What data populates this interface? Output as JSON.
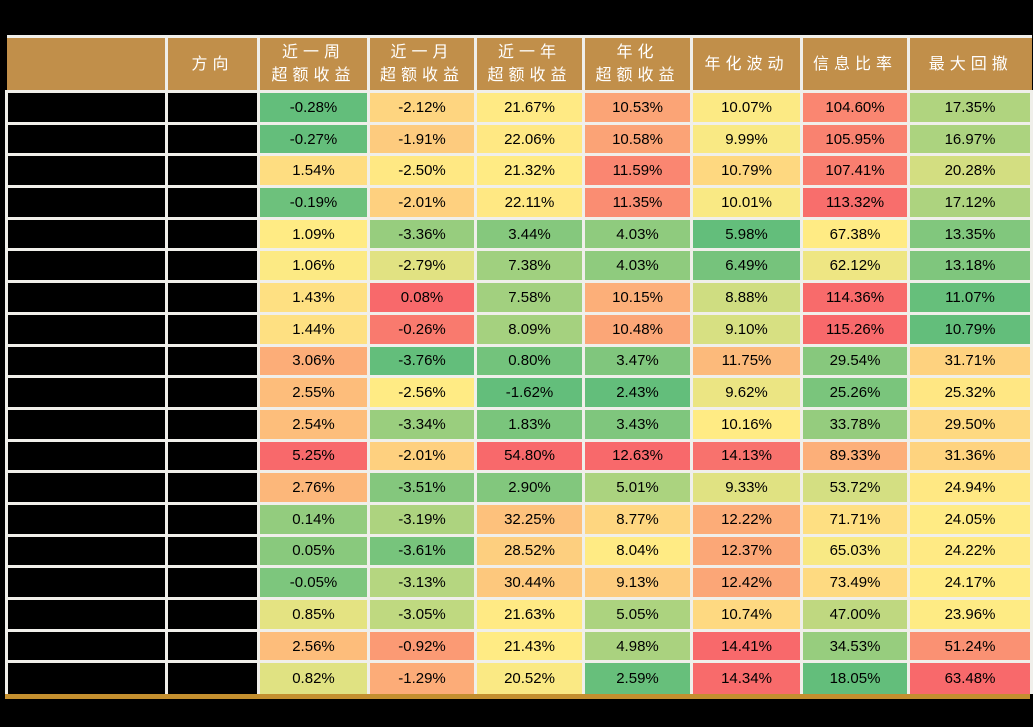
{
  "chart_data": {
    "type": "table",
    "columns": [
      {
        "id": "name",
        "lines": []
      },
      {
        "id": "direction",
        "lines": [
          "方向"
        ]
      },
      {
        "id": "week-excess",
        "lines": [
          "近一周",
          "超额收益"
        ]
      },
      {
        "id": "month-excess",
        "lines": [
          "近一月",
          "超额收益"
        ]
      },
      {
        "id": "year-excess",
        "lines": [
          "近一年",
          "超额收益"
        ]
      },
      {
        "id": "annualized-excess",
        "lines": [
          "年化",
          "超额收益"
        ]
      },
      {
        "id": "annualized-volatility",
        "lines": [
          "年化波动"
        ]
      },
      {
        "id": "information-ratio",
        "lines": [
          "信息比率"
        ]
      },
      {
        "id": "max-drawdown",
        "lines": [
          "最大回撤"
        ]
      }
    ],
    "rows": [
      {
        "name": "",
        "direction": "",
        "values": [
          "-0.28%",
          "-2.12%",
          "21.67%",
          "10.53%",
          "10.07%",
          "104.60%",
          "17.35%"
        ]
      },
      {
        "name": "",
        "direction": "",
        "values": [
          "-0.27%",
          "-1.91%",
          "22.06%",
          "10.58%",
          "9.99%",
          "105.95%",
          "16.97%"
        ]
      },
      {
        "name": "",
        "direction": "",
        "values": [
          "1.54%",
          "-2.50%",
          "21.32%",
          "11.59%",
          "10.79%",
          "107.41%",
          "20.28%"
        ]
      },
      {
        "name": "",
        "direction": "",
        "values": [
          "-0.19%",
          "-2.01%",
          "22.11%",
          "11.35%",
          "10.01%",
          "113.32%",
          "17.12%"
        ]
      },
      {
        "name": "",
        "direction": "",
        "values": [
          "1.09%",
          "-3.36%",
          "3.44%",
          "4.03%",
          "5.98%",
          "67.38%",
          "13.35%"
        ]
      },
      {
        "name": "",
        "direction": "",
        "values": [
          "1.06%",
          "-2.79%",
          "7.38%",
          "4.03%",
          "6.49%",
          "62.12%",
          "13.18%"
        ]
      },
      {
        "name": "",
        "direction": "",
        "values": [
          "1.43%",
          "0.08%",
          "7.58%",
          "10.15%",
          "8.88%",
          "114.36%",
          "11.07%"
        ]
      },
      {
        "name": "",
        "direction": "",
        "values": [
          "1.44%",
          "-0.26%",
          "8.09%",
          "10.48%",
          "9.10%",
          "115.26%",
          "10.79%"
        ]
      },
      {
        "name": "",
        "direction": "",
        "values": [
          "3.06%",
          "-3.76%",
          "0.80%",
          "3.47%",
          "11.75%",
          "29.54%",
          "31.71%"
        ]
      },
      {
        "name": "",
        "direction": "",
        "values": [
          "2.55%",
          "-2.56%",
          "-1.62%",
          "2.43%",
          "9.62%",
          "25.26%",
          "25.32%"
        ]
      },
      {
        "name": "",
        "direction": "",
        "values": [
          "2.54%",
          "-3.34%",
          "1.83%",
          "3.43%",
          "10.16%",
          "33.78%",
          "29.50%"
        ]
      },
      {
        "name": "",
        "direction": "",
        "values": [
          "5.25%",
          "-2.01%",
          "54.80%",
          "12.63%",
          "14.13%",
          "89.33%",
          "31.36%"
        ]
      },
      {
        "name": "",
        "direction": "",
        "values": [
          "2.76%",
          "-3.51%",
          "2.90%",
          "5.01%",
          "9.33%",
          "53.72%",
          "24.94%"
        ]
      },
      {
        "name": "",
        "direction": "",
        "values": [
          "0.14%",
          "-3.19%",
          "32.25%",
          "8.77%",
          "12.22%",
          "71.71%",
          "24.05%"
        ]
      },
      {
        "name": "",
        "direction": "",
        "values": [
          "0.05%",
          "-3.61%",
          "28.52%",
          "8.04%",
          "12.37%",
          "65.03%",
          "24.22%"
        ]
      },
      {
        "name": "",
        "direction": "",
        "values": [
          "-0.05%",
          "-3.13%",
          "30.44%",
          "9.13%",
          "12.42%",
          "73.49%",
          "24.17%"
        ]
      },
      {
        "name": "",
        "direction": "",
        "values": [
          "0.85%",
          "-3.05%",
          "21.63%",
          "5.05%",
          "10.74%",
          "47.00%",
          "23.96%"
        ]
      },
      {
        "name": "",
        "direction": "",
        "values": [
          "2.56%",
          "-0.92%",
          "21.43%",
          "4.98%",
          "14.41%",
          "34.53%",
          "51.24%"
        ]
      },
      {
        "name": "",
        "direction": "",
        "values": [
          "0.82%",
          "-1.29%",
          "20.52%",
          "2.59%",
          "14.34%",
          "18.05%",
          "63.48%"
        ]
      }
    ],
    "conditional_formatting": {
      "rule": "per-column three-color scale, midpoint at 50th percentile",
      "min_color": "#63BE7B",
      "mid_color": "#FFEB84",
      "max_color": "#F8696B"
    }
  },
  "style": {
    "page_bg": "#000000",
    "header_bg": "#C18F4A",
    "header_text": "#FFFFFF",
    "grid_color": "#F0EFEA",
    "redacted_cell_color": "#000000",
    "value_text_color": "#000000",
    "bottom_rule_color": "#C48F2F"
  }
}
